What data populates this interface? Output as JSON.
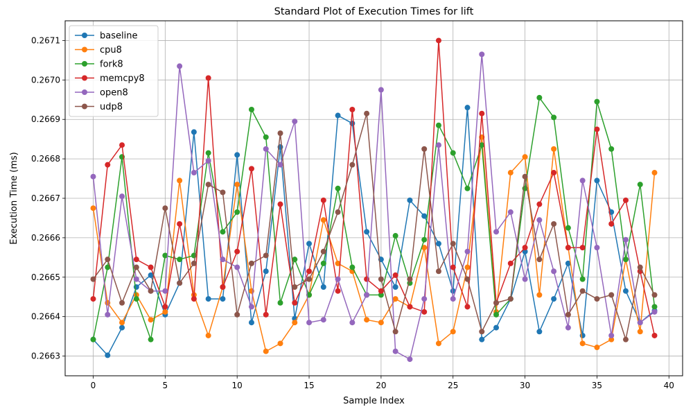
{
  "chart_data": {
    "type": "line",
    "title": "Standard Plot of Execution Times for lift",
    "xlabel": "Sample Index",
    "ylabel": "Execution Time (ms)",
    "xlim": [
      -1.95,
      40.95
    ],
    "ylim": [
      0.26625,
      0.26715
    ],
    "xticks": [
      0,
      5,
      10,
      15,
      20,
      25,
      30,
      35,
      40
    ],
    "yticks": [
      0.2663,
      0.2664,
      0.2665,
      0.2666,
      0.2667,
      0.2668,
      0.2669,
      0.267,
      0.2671
    ],
    "ytick_labels": [
      "0.2663",
      "0.2664",
      "0.2665",
      "0.2666",
      "0.2667",
      "0.2668",
      "0.2669",
      "0.2670",
      "0.2671"
    ],
    "grid": true,
    "legend_position": "top-left",
    "x": [
      0,
      1,
      2,
      3,
      4,
      5,
      6,
      7,
      8,
      9,
      10,
      11,
      12,
      13,
      14,
      15,
      16,
      17,
      18,
      19,
      20,
      21,
      22,
      23,
      24,
      25,
      26,
      27,
      28,
      29,
      30,
      31,
      32,
      33,
      34,
      35,
      36,
      37,
      38,
      39
    ],
    "series": [
      {
        "name": "baseline",
        "color": "#1f77b4",
        "values": [
          0.266342,
          0.266302,
          0.266372,
          0.266475,
          0.266505,
          0.266405,
          0.266485,
          0.266868,
          0.266445,
          0.266445,
          0.26681,
          0.266385,
          0.266515,
          0.26683,
          0.266395,
          0.266585,
          0.266475,
          0.26691,
          0.26689,
          0.266615,
          0.266545,
          0.266475,
          0.266695,
          0.266655,
          0.266585,
          0.266465,
          0.26693,
          0.266342,
          0.266372,
          0.266445,
          0.266565,
          0.266362,
          0.266445,
          0.266535,
          0.266352,
          0.266745,
          0.266665,
          0.266465,
          0.266385,
          0.266415
        ]
      },
      {
        "name": "cpu8",
        "color": "#ff7f0e",
        "values": [
          0.266675,
          0.266435,
          0.266385,
          0.266455,
          0.266392,
          0.266412,
          0.266745,
          0.266455,
          0.266352,
          0.266475,
          0.266735,
          0.266465,
          0.266312,
          0.266332,
          0.266385,
          0.266455,
          0.266645,
          0.266535,
          0.266515,
          0.266392,
          0.266385,
          0.266445,
          0.266425,
          0.266575,
          0.266332,
          0.266362,
          0.266525,
          0.266855,
          0.266412,
          0.266765,
          0.266805,
          0.266455,
          0.266825,
          0.266575,
          0.266332,
          0.266322,
          0.266342,
          0.266545,
          0.266362,
          0.266765
        ]
      },
      {
        "name": "fork8",
        "color": "#2ca02c",
        "values": [
          0.266342,
          0.266525,
          0.266805,
          0.266445,
          0.266342,
          0.266555,
          0.266545,
          0.266555,
          0.266815,
          0.266615,
          0.266665,
          0.266925,
          0.266855,
          0.266435,
          0.266545,
          0.266455,
          0.266535,
          0.266725,
          0.266525,
          0.266455,
          0.266455,
          0.266605,
          0.266485,
          0.266595,
          0.266885,
          0.266815,
          0.266725,
          0.266835,
          0.266405,
          0.266445,
          0.266725,
          0.266955,
          0.266905,
          0.266625,
          0.266495,
          0.266945,
          0.266825,
          0.266545,
          0.266735,
          0.266425
        ]
      },
      {
        "name": "memcpy8",
        "color": "#d62728",
        "values": [
          0.266445,
          0.266785,
          0.266835,
          0.266545,
          0.266525,
          0.266425,
          0.266635,
          0.266445,
          0.267005,
          0.266475,
          0.266565,
          0.266775,
          0.266405,
          0.266685,
          0.266435,
          0.266515,
          0.266695,
          0.266465,
          0.266925,
          0.266495,
          0.266465,
          0.266505,
          0.266425,
          0.266412,
          0.2671,
          0.266525,
          0.266425,
          0.266915,
          0.266435,
          0.266535,
          0.266575,
          0.266685,
          0.266765,
          0.266575,
          0.266575,
          0.266875,
          0.266635,
          0.266695,
          0.266515,
          0.266352
        ]
      },
      {
        "name": "open8",
        "color": "#9467bd",
        "values": [
          0.266755,
          0.266405,
          0.266705,
          0.266495,
          0.266465,
          0.266465,
          0.267035,
          0.266765,
          0.266795,
          0.266545,
          0.266525,
          0.266425,
          0.266825,
          0.266785,
          0.266895,
          0.266385,
          0.266392,
          0.266495,
          0.266385,
          0.266455,
          0.266975,
          0.266312,
          0.266292,
          0.266445,
          0.266835,
          0.266445,
          0.266565,
          0.267065,
          0.266615,
          0.266665,
          0.266495,
          0.266645,
          0.266515,
          0.266372,
          0.266745,
          0.266575,
          0.266352,
          0.266595,
          0.266385,
          0.266412
        ]
      },
      {
        "name": "udp8",
        "color": "#8c564b",
        "values": [
          0.266495,
          0.266545,
          0.266435,
          0.266525,
          0.266465,
          0.266675,
          0.266485,
          0.266535,
          0.266735,
          0.266715,
          0.266405,
          0.266535,
          0.266555,
          0.266865,
          0.266475,
          0.266495,
          0.266565,
          0.266665,
          0.266785,
          0.266915,
          0.266495,
          0.266362,
          0.266495,
          0.266825,
          0.266515,
          0.266585,
          0.266495,
          0.266362,
          0.266435,
          0.266445,
          0.266755,
          0.266545,
          0.266635,
          0.266405,
          0.266465,
          0.266445,
          0.266455,
          0.266342,
          0.266525,
          0.266455
        ]
      }
    ]
  }
}
